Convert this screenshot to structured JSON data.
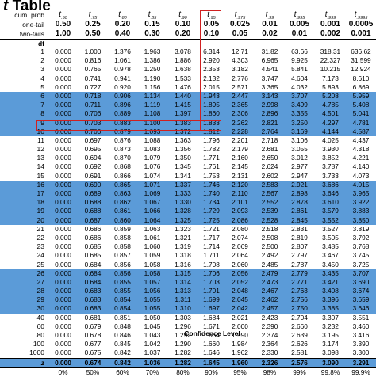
{
  "title": {
    "symbol": "t",
    "word": "Table"
  },
  "header_rows": {
    "cum_prob": {
      "label": "cum. prob",
      "values": [
        ".50",
        ".75",
        ".80",
        ".85",
        ".90",
        ".95",
        ".975",
        ".99",
        ".995",
        ".999",
        ".9995"
      ]
    },
    "one_tail": {
      "label": "one-tail",
      "values": [
        "0.50",
        "0.25",
        "0.20",
        "0.15",
        "0.10",
        "0.05",
        "0.025",
        "0.01",
        "0.005",
        "0.001",
        "0.0005"
      ]
    },
    "two_tails": {
      "label": "two-tails",
      "values": [
        "1.00",
        "0.50",
        "0.40",
        "0.30",
        "0.20",
        "0.10",
        "0.05",
        "0.02",
        "0.01",
        "0.002",
        "0.001"
      ]
    },
    "df_label": "df"
  },
  "rows": [
    {
      "df": "1",
      "v": [
        "0.000",
        "1.000",
        "1.376",
        "1.963",
        "3.078",
        "6.314",
        "12.71",
        "31.82",
        "63.66",
        "318.31",
        "636.62"
      ]
    },
    {
      "df": "2",
      "v": [
        "0.000",
        "0.816",
        "1.061",
        "1.386",
        "1.886",
        "2.920",
        "4.303",
        "6.965",
        "9.925",
        "22.327",
        "31.599"
      ]
    },
    {
      "df": "3",
      "v": [
        "0.000",
        "0.765",
        "0.978",
        "1.250",
        "1.638",
        "2.353",
        "3.182",
        "4.541",
        "5.841",
        "10.215",
        "12.924"
      ]
    },
    {
      "df": "4",
      "v": [
        "0.000",
        "0.741",
        "0.941",
        "1.190",
        "1.533",
        "2.132",
        "2.776",
        "3.747",
        "4.604",
        "7.173",
        "8.610"
      ]
    },
    {
      "df": "5",
      "v": [
        "0.000",
        "0.727",
        "0.920",
        "1.156",
        "1.476",
        "2.015",
        "2.571",
        "3.365",
        "4.032",
        "5.893",
        "6.869"
      ]
    },
    {
      "df": "6",
      "v": [
        "0.000",
        "0.718",
        "0.906",
        "1.134",
        "1.440",
        "1.943",
        "2.447",
        "3.143",
        "3.707",
        "5.208",
        "5.959"
      ]
    },
    {
      "df": "7",
      "v": [
        "0.000",
        "0.711",
        "0.896",
        "1.119",
        "1.415",
        "1.895",
        "2.365",
        "2.998",
        "3.499",
        "4.785",
        "5.408"
      ]
    },
    {
      "df": "8",
      "v": [
        "0.000",
        "0.706",
        "0.889",
        "1.108",
        "1.397",
        "1.860",
        "2.306",
        "2.896",
        "3.355",
        "4.501",
        "5.041"
      ]
    },
    {
      "df": "9",
      "v": [
        "0.000",
        "0.703",
        "0.883",
        "1.100",
        "1.383",
        "1.833",
        "2.262",
        "2.821",
        "3.250",
        "4.297",
        "4.781"
      ]
    },
    {
      "df": "10",
      "v": [
        "0.000",
        "0.700",
        "0.879",
        "1.093",
        "1.372",
        "1.812",
        "2.228",
        "2.764",
        "3.169",
        "4.144",
        "4.587"
      ]
    },
    {
      "df": "11",
      "v": [
        "0.000",
        "0.697",
        "0.876",
        "1.088",
        "1.363",
        "1.796",
        "2.201",
        "2.718",
        "3.106",
        "4.025",
        "4.437"
      ]
    },
    {
      "df": "12",
      "v": [
        "0.000",
        "0.695",
        "0.873",
        "1.083",
        "1.356",
        "1.782",
        "2.179",
        "2.681",
        "3.055",
        "3.930",
        "4.318"
      ]
    },
    {
      "df": "13",
      "v": [
        "0.000",
        "0.694",
        "0.870",
        "1.079",
        "1.350",
        "1.771",
        "2.160",
        "2.650",
        "3.012",
        "3.852",
        "4.221"
      ]
    },
    {
      "df": "14",
      "v": [
        "0.000",
        "0.692",
        "0.868",
        "1.076",
        "1.345",
        "1.761",
        "2.145",
        "2.624",
        "2.977",
        "3.787",
        "4.140"
      ]
    },
    {
      "df": "15",
      "v": [
        "0.000",
        "0.691",
        "0.866",
        "1.074",
        "1.341",
        "1.753",
        "2.131",
        "2.602",
        "2.947",
        "3.733",
        "4.073"
      ]
    },
    {
      "df": "16",
      "v": [
        "0.000",
        "0.690",
        "0.865",
        "1.071",
        "1.337",
        "1.746",
        "2.120",
        "2.583",
        "2.921",
        "3.686",
        "4.015"
      ]
    },
    {
      "df": "17",
      "v": [
        "0.000",
        "0.689",
        "0.863",
        "1.069",
        "1.333",
        "1.740",
        "2.110",
        "2.567",
        "2.898",
        "3.646",
        "3.965"
      ]
    },
    {
      "df": "18",
      "v": [
        "0.000",
        "0.688",
        "0.862",
        "1.067",
        "1.330",
        "1.734",
        "2.101",
        "2.552",
        "2.878",
        "3.610",
        "3.922"
      ]
    },
    {
      "df": "19",
      "v": [
        "0.000",
        "0.688",
        "0.861",
        "1.066",
        "1.328",
        "1.729",
        "2.093",
        "2.539",
        "2.861",
        "3.579",
        "3.883"
      ]
    },
    {
      "df": "20",
      "v": [
        "0.000",
        "0.687",
        "0.860",
        "1.064",
        "1.325",
        "1.725",
        "2.086",
        "2.528",
        "2.845",
        "3.552",
        "3.850"
      ]
    },
    {
      "df": "21",
      "v": [
        "0.000",
        "0.686",
        "0.859",
        "1.063",
        "1.323",
        "1.721",
        "2.080",
        "2.518",
        "2.831",
        "3.527",
        "3.819"
      ]
    },
    {
      "df": "22",
      "v": [
        "0.000",
        "0.686",
        "0.858",
        "1.061",
        "1.321",
        "1.717",
        "2.074",
        "2.508",
        "2.819",
        "3.505",
        "3.792"
      ]
    },
    {
      "df": "23",
      "v": [
        "0.000",
        "0.685",
        "0.858",
        "1.060",
        "1.319",
        "1.714",
        "2.069",
        "2.500",
        "2.807",
        "3.485",
        "3.768"
      ]
    },
    {
      "df": "24",
      "v": [
        "0.000",
        "0.685",
        "0.857",
        "1.059",
        "1.318",
        "1.711",
        "2.064",
        "2.492",
        "2.797",
        "3.467",
        "3.745"
      ]
    },
    {
      "df": "25",
      "v": [
        "0.000",
        "0.684",
        "0.856",
        "1.058",
        "1.316",
        "1.708",
        "2.060",
        "2.485",
        "2.787",
        "3.450",
        "3.725"
      ]
    },
    {
      "df": "26",
      "v": [
        "0.000",
        "0.684",
        "0.856",
        "1.058",
        "1.315",
        "1.706",
        "2.056",
        "2.479",
        "2.779",
        "3.435",
        "3.707"
      ]
    },
    {
      "df": "27",
      "v": [
        "0.000",
        "0.684",
        "0.855",
        "1.057",
        "1.314",
        "1.703",
        "2.052",
        "2.473",
        "2.771",
        "3.421",
        "3.690"
      ]
    },
    {
      "df": "28",
      "v": [
        "0.000",
        "0.683",
        "0.855",
        "1.056",
        "1.313",
        "1.701",
        "2.048",
        "2.467",
        "2.763",
        "3.408",
        "3.674"
      ]
    },
    {
      "df": "29",
      "v": [
        "0.000",
        "0.683",
        "0.854",
        "1.055",
        "1.311",
        "1.699",
        "2.045",
        "2.462",
        "2.756",
        "3.396",
        "3.659"
      ]
    },
    {
      "df": "30",
      "v": [
        "0.000",
        "0.683",
        "0.854",
        "1.055",
        "1.310",
        "1.697",
        "2.042",
        "2.457",
        "2.750",
        "3.385",
        "3.646"
      ]
    },
    {
      "df": "40",
      "v": [
        "0.000",
        "0.681",
        "0.851",
        "1.050",
        "1.303",
        "1.684",
        "2.021",
        "2.423",
        "2.704",
        "3.307",
        "3.551"
      ]
    },
    {
      "df": "60",
      "v": [
        "0.000",
        "0.679",
        "0.848",
        "1.045",
        "1.296",
        "1.671",
        "2.000",
        "2.390",
        "2.660",
        "3.232",
        "3.460"
      ]
    },
    {
      "df": "80",
      "v": [
        "0.000",
        "0.678",
        "0.846",
        "1.043",
        "1.292",
        "1.664",
        "1.990",
        "2.374",
        "2.639",
        "3.195",
        "3.416"
      ]
    },
    {
      "df": "100",
      "v": [
        "0.000",
        "0.677",
        "0.845",
        "1.042",
        "1.290",
        "1.660",
        "1.984",
        "2.364",
        "2.626",
        "3.174",
        "3.390"
      ]
    },
    {
      "df": "1000",
      "v": [
        "0.000",
        "0.675",
        "0.842",
        "1.037",
        "1.282",
        "1.646",
        "1.962",
        "2.330",
        "2.581",
        "3.098",
        "3.300"
      ]
    },
    {
      "df": "z",
      "v": [
        "0.000",
        "0.674",
        "0.842",
        "1.036",
        "1.282",
        "1.645",
        "1.960",
        "2.326",
        "2.576",
        "3.090",
        "3.291"
      ]
    }
  ],
  "confidence": {
    "values": [
      "0%",
      "50%",
      "60%",
      "70%",
      "80%",
      "90%",
      "95%",
      "98%",
      "99%",
      "99.8%",
      "99.9%"
    ],
    "label": "Confidence Level"
  },
  "colors": {
    "band_blue": "#5b9bd8",
    "highlight_red": "#d02020"
  }
}
